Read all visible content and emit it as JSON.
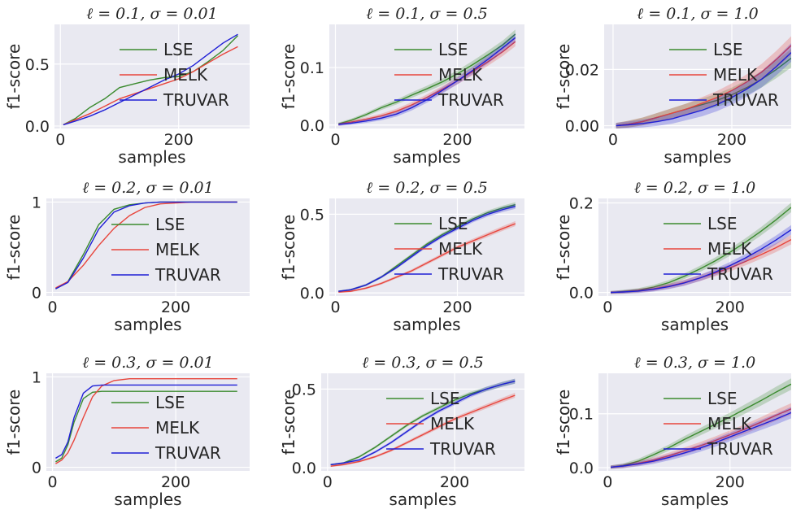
{
  "legend_labels": [
    "LSE",
    "MELK",
    "TRUVAR"
  ],
  "series_colors": {
    "LSE": "#3a8a2e",
    "MELK": "#e8453c",
    "TRUVAR": "#1f1fd6"
  },
  "chart_data": [
    {
      "type": "line",
      "title": "ℓ = 0.1, σ = 0.01",
      "xlabel": "samples",
      "ylabel": "f1-score",
      "xlim": [
        -10,
        320
      ],
      "ylim": [
        -0.02,
        0.82
      ],
      "xticks": [
        {
          "v": 0,
          "label": "0"
        },
        {
          "v": 200,
          "label": "200"
        }
      ],
      "yticks": [
        {
          "v": 0,
          "label": "0.0"
        },
        {
          "v": 0.5,
          "label": "0.5"
        }
      ],
      "legend": "upper-center",
      "grid": true,
      "band": 0.0,
      "x": [
        5,
        25,
        50,
        75,
        100,
        125,
        150,
        175,
        200,
        225,
        250,
        275,
        300
      ],
      "series": [
        {
          "name": "LSE",
          "values": [
            0.01,
            0.06,
            0.15,
            0.22,
            0.31,
            0.34,
            0.37,
            0.39,
            0.4,
            0.44,
            0.52,
            0.61,
            0.73
          ]
        },
        {
          "name": "MELK",
          "values": [
            0.01,
            0.05,
            0.1,
            0.16,
            0.22,
            0.26,
            0.3,
            0.34,
            0.38,
            0.44,
            0.51,
            0.58,
            0.64
          ]
        },
        {
          "name": "TRUVAR",
          "values": [
            0.01,
            0.04,
            0.08,
            0.13,
            0.19,
            0.25,
            0.31,
            0.37,
            0.42,
            0.49,
            0.58,
            0.67,
            0.74
          ]
        }
      ]
    },
    {
      "type": "line",
      "title": "ℓ = 0.1, σ = 0.5",
      "xlabel": "samples",
      "ylabel": "f1-score",
      "xlim": [
        -10,
        310
      ],
      "ylim": [
        -0.006,
        0.175
      ],
      "xticks": [
        {
          "v": 0,
          "label": "0"
        },
        {
          "v": 200,
          "label": "200"
        }
      ],
      "yticks": [
        {
          "v": 0,
          "label": "0.0"
        },
        {
          "v": 0.1,
          "label": "0.1"
        }
      ],
      "legend": "upper-center",
      "grid": true,
      "band": 0.006,
      "x": [
        5,
        25,
        50,
        75,
        100,
        125,
        150,
        175,
        200,
        225,
        250,
        275,
        295
      ],
      "series": [
        {
          "name": "LSE",
          "values": [
            0.002,
            0.008,
            0.018,
            0.03,
            0.04,
            0.052,
            0.063,
            0.075,
            0.089,
            0.105,
            0.122,
            0.14,
            0.158
          ]
        },
        {
          "name": "MELK",
          "values": [
            0.001,
            0.005,
            0.01,
            0.016,
            0.024,
            0.035,
            0.048,
            0.062,
            0.077,
            0.093,
            0.11,
            0.128,
            0.145
          ]
        },
        {
          "name": "TRUVAR",
          "values": [
            0.001,
            0.003,
            0.007,
            0.012,
            0.019,
            0.03,
            0.044,
            0.06,
            0.077,
            0.095,
            0.114,
            0.135,
            0.152
          ]
        }
      ]
    },
    {
      "type": "line",
      "title": "ℓ = 0.1, σ = 1.0",
      "xlabel": "samples",
      "ylabel": "f1-score",
      "xlim": [
        -15,
        300
      ],
      "ylim": [
        -0.001,
        0.036
      ],
      "xticks": [
        {
          "v": 0,
          "label": "0"
        },
        {
          "v": 200,
          "label": "200"
        }
      ],
      "yticks": [
        {
          "v": 0,
          "label": "0.00"
        },
        {
          "v": 0.02,
          "label": "0.02"
        }
      ],
      "legend": "upper-center",
      "grid": true,
      "band": 0.0025,
      "x": [
        5,
        25,
        50,
        75,
        100,
        125,
        150,
        175,
        200,
        225,
        250,
        275,
        300
      ],
      "series": [
        {
          "name": "LSE",
          "values": [
            0.0,
            0.0005,
            0.0015,
            0.003,
            0.0045,
            0.006,
            0.0075,
            0.009,
            0.011,
            0.0135,
            0.0165,
            0.02,
            0.024
          ]
        },
        {
          "name": "MELK",
          "values": [
            0.0,
            0.0005,
            0.0015,
            0.003,
            0.0045,
            0.006,
            0.008,
            0.01,
            0.0125,
            0.0155,
            0.019,
            0.0235,
            0.0285
          ]
        },
        {
          "name": "TRUVAR",
          "values": [
            0.0,
            0.0003,
            0.0008,
            0.0015,
            0.0025,
            0.004,
            0.0055,
            0.0075,
            0.01,
            0.013,
            0.0165,
            0.021,
            0.026
          ]
        }
      ]
    },
    {
      "type": "line",
      "title": "ℓ = 0.2, σ = 0.01",
      "xlabel": "samples",
      "ylabel": "f1-score",
      "xlim": [
        -10,
        320
      ],
      "ylim": [
        -0.04,
        1.04
      ],
      "xticks": [
        {
          "v": 0,
          "label": "0"
        },
        {
          "v": 200,
          "label": "200"
        }
      ],
      "yticks": [
        {
          "v": 0,
          "label": "0"
        },
        {
          "v": 1,
          "label": "1"
        }
      ],
      "legend": "center-right",
      "grid": true,
      "band": 0.0,
      "x": [
        5,
        25,
        50,
        75,
        100,
        125,
        150,
        175,
        200,
        225,
        250,
        300
      ],
      "series": [
        {
          "name": "LSE",
          "values": [
            0.04,
            0.12,
            0.42,
            0.75,
            0.92,
            0.97,
            0.99,
            1.0,
            1.0,
            1.0,
            1.0,
            1.0
          ]
        },
        {
          "name": "MELK",
          "values": [
            0.05,
            0.12,
            0.3,
            0.52,
            0.71,
            0.85,
            0.94,
            0.98,
            0.99,
            1.0,
            1.0,
            1.0
          ]
        },
        {
          "name": "TRUVAR",
          "values": [
            0.04,
            0.11,
            0.38,
            0.7,
            0.89,
            0.96,
            0.99,
            1.0,
            1.0,
            1.0,
            1.0,
            1.0
          ]
        }
      ]
    },
    {
      "type": "line",
      "title": "ℓ = 0.2, σ = 0.5",
      "xlabel": "samples",
      "ylabel": "f1-score",
      "xlim": [
        -10,
        310
      ],
      "ylim": [
        -0.02,
        0.6
      ],
      "xticks": [
        {
          "v": 0,
          "label": "0"
        },
        {
          "v": 200,
          "label": "200"
        }
      ],
      "yticks": [
        {
          "v": 0,
          "label": "0.0"
        },
        {
          "v": 0.5,
          "label": "0.5"
        }
      ],
      "legend": "upper-center",
      "grid": true,
      "band": 0.012,
      "x": [
        5,
        25,
        50,
        75,
        100,
        125,
        150,
        175,
        200,
        225,
        250,
        275,
        295
      ],
      "series": [
        {
          "name": "LSE",
          "values": [
            0.01,
            0.02,
            0.05,
            0.1,
            0.17,
            0.24,
            0.31,
            0.37,
            0.42,
            0.47,
            0.51,
            0.54,
            0.56
          ]
        },
        {
          "name": "MELK",
          "values": [
            0.005,
            0.01,
            0.03,
            0.06,
            0.1,
            0.14,
            0.19,
            0.24,
            0.29,
            0.33,
            0.37,
            0.41,
            0.44
          ]
        },
        {
          "name": "TRUVAR",
          "values": [
            0.01,
            0.02,
            0.05,
            0.1,
            0.16,
            0.23,
            0.3,
            0.36,
            0.41,
            0.46,
            0.5,
            0.53,
            0.55
          ]
        }
      ]
    },
    {
      "type": "line",
      "title": "ℓ = 0.2, σ = 1.0",
      "xlabel": "samples",
      "ylabel": "f1-score",
      "xlim": [
        -15,
        300
      ],
      "ylim": [
        -0.008,
        0.21
      ],
      "xticks": [
        {
          "v": 0,
          "label": "0"
        },
        {
          "v": 200,
          "label": "200"
        }
      ],
      "yticks": [
        {
          "v": 0,
          "label": "0.0"
        },
        {
          "v": 0.2,
          "label": "0.2"
        }
      ],
      "legend": "upper-center",
      "grid": true,
      "band": 0.008,
      "x": [
        5,
        25,
        50,
        75,
        100,
        125,
        150,
        175,
        200,
        225,
        250,
        275,
        300
      ],
      "series": [
        {
          "name": "LSE",
          "values": [
            0.0,
            0.002,
            0.005,
            0.012,
            0.022,
            0.036,
            0.052,
            0.07,
            0.09,
            0.112,
            0.136,
            0.162,
            0.19
          ]
        },
        {
          "name": "MELK",
          "values": [
            0.0,
            0.001,
            0.004,
            0.008,
            0.014,
            0.022,
            0.032,
            0.043,
            0.055,
            0.069,
            0.084,
            0.1,
            0.118
          ]
        },
        {
          "name": "TRUVAR",
          "values": [
            0.0,
            0.001,
            0.003,
            0.007,
            0.013,
            0.021,
            0.032,
            0.045,
            0.06,
            0.077,
            0.096,
            0.117,
            0.14
          ]
        }
      ]
    },
    {
      "type": "line",
      "title": "ℓ = 0.3, σ = 0.01",
      "xlabel": "samples",
      "ylabel": "f1-score",
      "xlim": [
        -10,
        320
      ],
      "ylim": [
        -0.04,
        1.04
      ],
      "xticks": [
        {
          "v": 0,
          "label": "0"
        },
        {
          "v": 200,
          "label": "200"
        }
      ],
      "yticks": [
        {
          "v": 0,
          "label": "0"
        },
        {
          "v": 1,
          "label": "1"
        }
      ],
      "legend": "lower-center",
      "grid": true,
      "band": 0.0,
      "x": [
        5,
        15,
        25,
        35,
        50,
        65,
        80,
        100,
        125,
        150,
        200,
        250,
        300
      ],
      "series": [
        {
          "name": "LSE",
          "values": [
            0.06,
            0.1,
            0.25,
            0.5,
            0.76,
            0.83,
            0.84,
            0.84,
            0.84,
            0.84,
            0.84,
            0.84,
            0.84
          ]
        },
        {
          "name": "MELK",
          "values": [
            0.04,
            0.08,
            0.16,
            0.3,
            0.55,
            0.78,
            0.9,
            0.96,
            0.98,
            0.98,
            0.98,
            0.98,
            0.98
          ]
        },
        {
          "name": "TRUVAR",
          "values": [
            0.1,
            0.14,
            0.28,
            0.55,
            0.82,
            0.9,
            0.91,
            0.91,
            0.91,
            0.91,
            0.91,
            0.91,
            0.91
          ]
        }
      ]
    },
    {
      "type": "line",
      "title": "ℓ = 0.3, σ = 0.5",
      "xlabel": "samples",
      "ylabel": "f1-score",
      "xlim": [
        -10,
        310
      ],
      "ylim": [
        -0.02,
        0.6
      ],
      "xticks": [
        {
          "v": 0,
          "label": "0"
        },
        {
          "v": 200,
          "label": "200"
        }
      ],
      "yticks": [
        {
          "v": 0,
          "label": "0.0"
        },
        {
          "v": 0.5,
          "label": "0.5"
        }
      ],
      "legend": "upper-center",
      "grid": true,
      "band": 0.012,
      "x": [
        5,
        25,
        50,
        75,
        100,
        125,
        150,
        175,
        200,
        225,
        250,
        275,
        295
      ],
      "series": [
        {
          "name": "LSE",
          "values": [
            0.02,
            0.03,
            0.07,
            0.13,
            0.2,
            0.27,
            0.33,
            0.38,
            0.43,
            0.47,
            0.5,
            0.53,
            0.55
          ]
        },
        {
          "name": "MELK",
          "values": [
            0.01,
            0.02,
            0.04,
            0.07,
            0.11,
            0.16,
            0.21,
            0.26,
            0.31,
            0.35,
            0.39,
            0.43,
            0.46
          ]
        },
        {
          "name": "TRUVAR",
          "values": [
            0.02,
            0.03,
            0.05,
            0.1,
            0.16,
            0.23,
            0.3,
            0.36,
            0.41,
            0.46,
            0.5,
            0.53,
            0.55
          ]
        }
      ]
    },
    {
      "type": "line",
      "title": "ℓ = 0.3, σ = 1.0",
      "xlabel": "samples",
      "ylabel": "f1-score",
      "xlim": [
        -15,
        300
      ],
      "ylim": [
        -0.006,
        0.175
      ],
      "xticks": [
        {
          "v": 0,
          "label": "0"
        },
        {
          "v": 200,
          "label": "200"
        }
      ],
      "yticks": [
        {
          "v": 0,
          "label": "0.0"
        },
        {
          "v": 0.1,
          "label": "0.1"
        }
      ],
      "legend": "upper-center",
      "grid": true,
      "band": 0.008,
      "x": [
        5,
        25,
        50,
        75,
        100,
        125,
        150,
        175,
        200,
        225,
        250,
        275,
        300
      ],
      "series": [
        {
          "name": "LSE",
          "values": [
            0.001,
            0.004,
            0.012,
            0.024,
            0.037,
            0.052,
            0.066,
            0.08,
            0.094,
            0.109,
            0.124,
            0.14,
            0.155
          ]
        },
        {
          "name": "MELK",
          "values": [
            0.001,
            0.003,
            0.008,
            0.014,
            0.022,
            0.031,
            0.04,
            0.05,
            0.061,
            0.072,
            0.084,
            0.097,
            0.109
          ]
        },
        {
          "name": "TRUVAR",
          "values": [
            0.001,
            0.003,
            0.007,
            0.012,
            0.019,
            0.027,
            0.036,
            0.046,
            0.057,
            0.068,
            0.079,
            0.09,
            0.102
          ]
        }
      ]
    }
  ]
}
